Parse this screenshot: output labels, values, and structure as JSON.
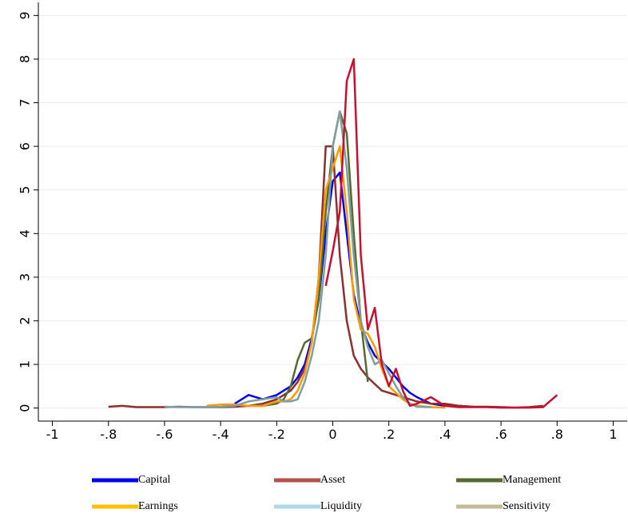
{
  "chart_data": {
    "type": "line",
    "x": [
      -0.8,
      -0.75,
      -0.7,
      -0.65,
      -0.6,
      -0.55,
      -0.5,
      -0.45,
      -0.4,
      -0.35,
      -0.3,
      -0.25,
      -0.2,
      -0.175,
      -0.15,
      -0.125,
      -0.1,
      -0.075,
      -0.05,
      -0.025,
      0,
      0.025,
      0.05,
      0.075,
      0.1,
      0.125,
      0.15,
      0.175,
      0.2,
      0.225,
      0.25,
      0.275,
      0.3,
      0.35,
      0.4,
      0.45,
      0.5,
      0.55,
      0.6,
      0.65,
      0.7,
      0.75,
      0.8
    ],
    "series": [
      {
        "name": "Capital",
        "color": "#0000ee",
        "legend_color": "#0000ee",
        "values": [
          null,
          null,
          null,
          null,
          null,
          null,
          null,
          null,
          null,
          0.1,
          0.3,
          0.2,
          0.3,
          0.4,
          0.5,
          0.7,
          1.0,
          1.6,
          2.5,
          4.0,
          5.2,
          5.4,
          4.0,
          2.6,
          1.9,
          1.5,
          1.2,
          1.05,
          0.9,
          0.7,
          0.5,
          0.35,
          0.25,
          0.1,
          0.05,
          0.05,
          0.03,
          null,
          null,
          null,
          null,
          null,
          null
        ]
      },
      {
        "name": "Asset",
        "color": "#8b2f2f",
        "legend_color": "#b5514f",
        "values": [
          0.03,
          0.05,
          0.02,
          0.02,
          0.02,
          0.03,
          0.02,
          0.02,
          0.02,
          0.03,
          0.05,
          0.1,
          0.2,
          0.3,
          0.4,
          0.6,
          0.9,
          1.5,
          3.0,
          6.0,
          6.0,
          3.5,
          2.0,
          1.2,
          0.9,
          0.7,
          0.55,
          0.4,
          0.35,
          0.3,
          0.25,
          0.2,
          0.15,
          0.1,
          0.1,
          0.05,
          0.03,
          0.03,
          0.02,
          0.01,
          0.02,
          0.05,
          null
        ]
      },
      {
        "name": "Management",
        "color": "#556b2f",
        "legend_color": "#556b2f",
        "values": [
          null,
          null,
          null,
          null,
          null,
          null,
          null,
          null,
          null,
          null,
          0.05,
          0.05,
          0.1,
          0.2,
          0.5,
          1.1,
          1.5,
          1.6,
          2.5,
          4.5,
          6.0,
          6.8,
          6.3,
          4.0,
          2.0,
          0.6,
          null,
          null,
          null,
          null,
          null,
          null,
          null,
          null,
          null,
          null,
          null,
          null,
          null,
          null,
          null,
          null,
          null
        ]
      },
      {
        "name": "Earnings",
        "color": "#ff9900",
        "legend_color": "#ffbf00",
        "values": [
          null,
          null,
          null,
          null,
          null,
          null,
          null,
          0.05,
          0.08,
          0.08,
          0.05,
          0.05,
          0.15,
          0.15,
          0.2,
          0.4,
          0.8,
          1.5,
          3.0,
          5.0,
          5.5,
          6.0,
          4.5,
          2.5,
          1.8,
          1.7,
          1.4,
          0.9,
          0.5,
          0.35,
          0.2,
          0.1,
          0.05,
          0.02,
          0.01,
          null,
          null,
          null,
          null,
          null,
          null,
          null,
          null
        ]
      },
      {
        "name": "Liquidity",
        "color": "#7f9f9f",
        "legend_color": "#add8e6",
        "values": [
          null,
          null,
          null,
          null,
          0.03,
          0.02,
          0.02,
          0.02,
          0.03,
          0.05,
          0.15,
          0.2,
          0.25,
          0.15,
          0.15,
          0.2,
          0.6,
          1.2,
          2.0,
          3.5,
          6.0,
          6.8,
          5.5,
          3.5,
          2.0,
          1.4,
          1.0,
          1.1,
          0.8,
          0.5,
          0.25,
          0.1,
          0.03,
          0.02,
          null,
          null,
          null,
          null,
          null,
          null,
          null,
          null,
          null
        ]
      },
      {
        "name": "Sensitivity",
        "color": "#c8102e",
        "legend_color": "#c4b998",
        "values": [
          null,
          null,
          null,
          null,
          null,
          null,
          null,
          null,
          null,
          null,
          null,
          null,
          null,
          null,
          null,
          null,
          null,
          null,
          null,
          2.8,
          3.6,
          4.5,
          7.5,
          8.0,
          3.5,
          1.8,
          2.3,
          1.0,
          0.5,
          0.9,
          0.4,
          0.05,
          0.1,
          0.25,
          0.05,
          0.02,
          0.02,
          0.02,
          0.01,
          0.01,
          0.01,
          0.02,
          0.3
        ]
      }
    ],
    "xlim": [
      -1.05,
      1.05
    ],
    "xticks": [
      {
        "value": -1,
        "label": "-1"
      },
      {
        "value": -0.8,
        "label": "-.8"
      },
      {
        "value": -0.6,
        "label": "-.6"
      },
      {
        "value": -0.4,
        "label": "-.4"
      },
      {
        "value": -0.2,
        "label": "-.2"
      },
      0,
      {
        "value": 0.2,
        "label": ".2"
      },
      {
        "value": 0.4,
        "label": ".4"
      },
      {
        "value": 0.6,
        "label": ".6"
      },
      {
        "value": 0.8,
        "label": ".8"
      },
      1
    ],
    "ylim": [
      -0.3,
      9.3
    ],
    "yticks": [
      0,
      1,
      2,
      3,
      4,
      5,
      6,
      7,
      8,
      9
    ],
    "grid": true
  }
}
